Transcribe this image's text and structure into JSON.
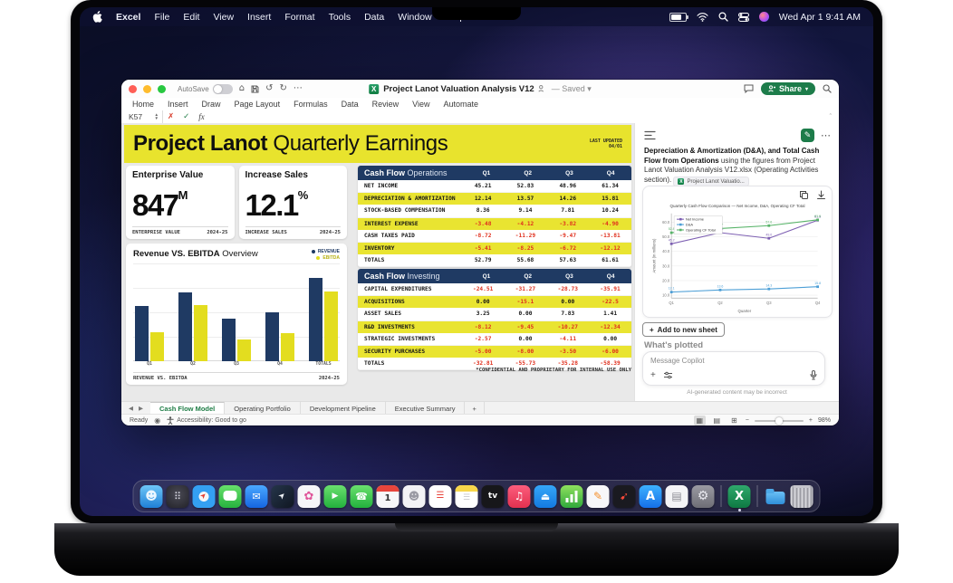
{
  "icons": {
    "home": "⌂",
    "undo": "↺",
    "redo": "↻",
    "more": "⋯",
    "chevron_down": "▾",
    "cancel": "✗",
    "confirm": "✓",
    "fx": "fx",
    "collapse": "ˆ",
    "tab_prev": "◀",
    "tab_next": "▶",
    "record": "◉",
    "grid_view": "▦",
    "page_view": "▤",
    "break_view": "⊞",
    "minus": "−",
    "plus": "+",
    "more_panel": "⋯",
    "pencil": "✎"
  },
  "desktop": {
    "menu_bar": {
      "items": [
        "Excel",
        "File",
        "Edit",
        "View",
        "Insert",
        "Format",
        "Tools",
        "Data",
        "Window",
        "Help"
      ],
      "clock": "Wed Apr 1  9:41 AM"
    },
    "dock": {
      "items": [
        {
          "k": "finder",
          "glyph": "☻",
          "bg": "linear-gradient(180deg,#6ec6f7,#1f80d7)",
          "fg": "#eaf6ff",
          "fs": "13"
        },
        {
          "k": "launchpad",
          "glyph": "⠿",
          "bg": "radial-gradient(circle at 50% 40%,#4a4a55,#232329)",
          "fg": "#d8d8e2",
          "fs": "11"
        },
        {
          "k": "safari",
          "glyph": "➤",
          "bg": "radial-gradient(circle,#f4f6f8 30%,#34a0f2 32%)",
          "fg": "#e53e30",
          "rot": "-45",
          "fs": "8"
        },
        {
          "k": "messages",
          "cls": "bubble",
          "glyph": "",
          "bg": "linear-gradient(180deg,#67e06b,#27b33f)"
        },
        {
          "k": "mail",
          "glyph": "✉",
          "bg": "linear-gradient(180deg,#4aa8ff,#1565e0)",
          "fg": "#fff",
          "fs": "11"
        },
        {
          "k": "maps",
          "glyph": "➤",
          "bg": "linear-gradient(135deg,#25354a,#101722)",
          "fg": "#f2f5f8",
          "rot": "-45",
          "fs": "9"
        },
        {
          "k": "photos",
          "glyph": "✿",
          "bg": "#f6f6f8",
          "fg": "#e0559a",
          "fs": "13"
        },
        {
          "k": "facetime",
          "glyph": "▶",
          "bg": "linear-gradient(180deg,#6ae06e,#23b13d)",
          "fg": "#fff",
          "fs": "9"
        },
        {
          "k": "phone",
          "glyph": "☎",
          "bg": "linear-gradient(180deg,#6ae06e,#23b13d)",
          "fg": "#fff",
          "fs": "11"
        },
        {
          "k": "calendar",
          "cls": "cal",
          "glyph": "1",
          "bg": "#f7f7f9",
          "fg": "#333",
          "fs": "10"
        },
        {
          "k": "contacts",
          "glyph": "☻",
          "bg": "#f2f2f5",
          "fg": "#9a9aa4",
          "fs": "12"
        },
        {
          "k": "reminders",
          "glyph": "☰",
          "bg": "#ffffff",
          "fg": "#e8453c",
          "fs": "10"
        },
        {
          "k": "notes",
          "cls": "notes",
          "glyph": "☰",
          "bg": "#fff",
          "fg": "#c9c9ce",
          "fs": "9"
        },
        {
          "k": "tv",
          "glyph": "tv",
          "bg": "#17171a",
          "fg": "#fff",
          "fs": "9",
          "bold": true
        },
        {
          "k": "music",
          "glyph": "♫",
          "bg": "linear-gradient(180deg,#fb5d7d,#e3314f)",
          "fg": "#fff",
          "fs": "12"
        },
        {
          "k": "keynote",
          "glyph": "⏏",
          "bg": "linear-gradient(180deg,#35a7f8,#1479e0)",
          "fg": "#fff",
          "fs": "11"
        },
        {
          "k": "numbers",
          "cls": "numbers",
          "glyph": "",
          "bg": "linear-gradient(180deg,#8ee05e,#30a83c)"
        },
        {
          "k": "pages",
          "glyph": "✎",
          "bg": "#f7f7f9",
          "fg": "#f5902c",
          "fs": "12"
        },
        {
          "k": "rocket",
          "glyph": "➹",
          "bg": "#1a1a20",
          "fg": "#ff4b3a",
          "fs": "12"
        },
        {
          "k": "app-store",
          "glyph": "A",
          "bg": "linear-gradient(180deg,#3db1ff,#156fe8)",
          "fg": "#fff",
          "fs": "13",
          "bold": true
        },
        {
          "k": "freeform",
          "glyph": "▤",
          "bg": "#f4f4f6",
          "fg": "#8a8a92",
          "fs": "12"
        },
        {
          "k": "settings",
          "glyph": "⚙",
          "bg": "linear-gradient(180deg,#9a9aa2,#6e6e76)",
          "fg": "#e8e8ee",
          "fs": "14"
        },
        {
          "type": "sep"
        },
        {
          "k": "excel",
          "glyph": "X",
          "bg": "linear-gradient(180deg,#2fa96c,#0f7a43)",
          "fg": "#fff",
          "fs": "13",
          "bold": true,
          "running": true
        },
        {
          "type": "sep"
        },
        {
          "k": "downloads",
          "cls": "folder",
          "glyph": "",
          "bg": ""
        },
        {
          "k": "trash",
          "cls": "trash",
          "glyph": "",
          "bg": ""
        }
      ]
    }
  },
  "window": {
    "titlebar": {
      "autosave_label": "AutoSave",
      "title": "Project Lanot Valuation Analysis V12",
      "saved_label": "— Saved",
      "share_label": "Share"
    },
    "ribbon_tabs": [
      "Home",
      "Insert",
      "Draw",
      "Page Layout",
      "Formulas",
      "Data",
      "Review",
      "View",
      "Automate"
    ],
    "formula_bar": {
      "cell_ref": "K57"
    },
    "sheet": {
      "header": {
        "title_bold": "Project Lanot",
        "title_light": " Quarterly Earnings",
        "updated_label": "LAST UPDATED",
        "updated_value": "04/01"
      },
      "kpis": [
        {
          "title": "Enterprise Value",
          "value": "847",
          "unit": "M",
          "footer_left": "ENTERPRISE VALUE",
          "footer_right": "2024-25"
        },
        {
          "title": "Increase Sales",
          "value": "12.1",
          "unit": "%",
          "footer_left": "INCREASE SALES",
          "footer_right": "2024-25"
        }
      ],
      "tables": [
        {
          "title_bold": "Cash Flow",
          "title_light": " Operations",
          "columns": [
            "Q1",
            "Q2",
            "Q3",
            "Q4"
          ],
          "rows": [
            {
              "label": "NET INCOME",
              "values": [
                "45.21",
                "52.83",
                "48.96",
                "61.34"
              ]
            },
            {
              "label": "DEPRECIATION & AMORTIZATION",
              "values": [
                "12.14",
                "13.57",
                "14.26",
                "15.81"
              ]
            },
            {
              "label": "STOCK-BASED COMPENSATION",
              "values": [
                "8.36",
                "9.14",
                "7.81",
                "10.24"
              ]
            },
            {
              "label": "INTEREST EXPENSE",
              "values": [
                "-3.48",
                "-4.12",
                "-3.82",
                "-4.90"
              ]
            },
            {
              "label": "CASH TAXES PAID",
              "values": [
                "-8.72",
                "-11.29",
                "-9.47",
                "-13.81"
              ]
            },
            {
              "label": "INVENTORY",
              "values": [
                "-5.41",
                "-8.25",
                "-6.72",
                "-12.12"
              ]
            },
            {
              "label": "TOTALS",
              "values": [
                "52.79",
                "55.68",
                "57.63",
                "61.61"
              ]
            }
          ]
        },
        {
          "title_bold": "Cash Flow",
          "title_light": " Investing",
          "columns": [
            "Q1",
            "Q2",
            "Q3",
            "Q4"
          ],
          "rows": [
            {
              "label": "CAPITAL EXPENDITURES",
              "values": [
                "-24.51",
                "-31.27",
                "-28.73",
                "-35.91"
              ]
            },
            {
              "label": "ACQUISITIONS",
              "values": [
                "0.00",
                "-15.1",
                "0.00",
                "-22.5"
              ]
            },
            {
              "label": "ASSET SALES",
              "values": [
                "3.25",
                "0.00",
                "7.83",
                "1.41"
              ]
            },
            {
              "label": "R&D INVESTMENTS",
              "values": [
                "-8.12",
                "-9.45",
                "-10.27",
                "-12.34"
              ]
            },
            {
              "label": "STRATEGIC INVESTMENTS",
              "values": [
                "-2.57",
                "0.00",
                "-4.11",
                "0.00"
              ]
            },
            {
              "label": "SECURITY PURCHASES",
              "values": [
                "-5.00",
                "-8.00",
                "-3.50",
                "-6.00"
              ]
            },
            {
              "label": "TOTALS",
              "values": [
                "-32.81",
                "-55.73",
                "-35.28",
                "-58.39"
              ]
            }
          ],
          "note": "*CONFIDENTIAL AND PROPRIETARY FOR INTERNAL USE ONLY"
        }
      ]
    },
    "copilot": {
      "message_segments": [
        {
          "t": "Depreciation & Amortization (D&A), and Total Cash Flow from Operations ",
          "b": true
        },
        {
          "t": "using the figures from Project Lanot Valuation Analysis V12.xlsx (Operating Activities section). ",
          "b": false
        }
      ],
      "attachment_chip": "Project Lanot Valuatio...",
      "add_button_label": "Add to new sheet",
      "whats_plotted": "What's plotted",
      "input_placeholder": "Message Copilot",
      "disclaimer": "AI-generated content may be incorrect"
    },
    "sheet_tabs": {
      "tabs": [
        {
          "label": "Cash Flow Model",
          "active": true
        },
        {
          "label": "Operating Portfolio",
          "active": false
        },
        {
          "label": "Development Pipeline",
          "active": false
        },
        {
          "label": "Executive Summary",
          "active": false
        }
      ],
      "add_label": "+"
    },
    "status_bar": {
      "ready": "Ready",
      "accessibility": "Accessibility: Good to go",
      "zoom": "98%"
    }
  },
  "chart_data": [
    {
      "type": "bar",
      "title_bold": "Revenue VS. EBITDA",
      "title_light": " Overview",
      "categories": [
        "Q1",
        "Q2",
        "Q3",
        "Q4",
        "TOTALS"
      ],
      "series": [
        {
          "name": "REVENUE",
          "color": "#1f3a63",
          "values": [
            59,
            73,
            45,
            52,
            88
          ]
        },
        {
          "name": "EBITDA",
          "color": "#e3dd1f",
          "values": [
            31,
            60,
            23,
            30,
            74
          ]
        }
      ],
      "ylim": [
        0,
        100
      ],
      "grid": true,
      "legend_position": "top-right",
      "footer_left": "REVENUE VS. EBITDA",
      "footer_right": "2024-25"
    },
    {
      "type": "line",
      "title": "Quarterly Cash Flow Comparison — Net Income, D&A, Operating CF Total",
      "x": [
        "Q1",
        "Q2",
        "Q3",
        "Q4"
      ],
      "xlabel": "Quarter",
      "ylabel": "Amount (in millions)",
      "yticks": [
        10,
        20,
        30,
        40,
        50,
        60
      ],
      "ylim": [
        8,
        66
      ],
      "series": [
        {
          "name": "Net Income",
          "color": "#7d5fb2",
          "values": [
            45.21,
            52.83,
            48.96,
            61.34
          ]
        },
        {
          "name": "D&A",
          "color": "#4d9fd6",
          "values": [
            12.14,
            13.57,
            14.26,
            15.81
          ]
        },
        {
          "name": "Operating CF Total",
          "color": "#57b368",
          "values": [
            52.79,
            55.68,
            57.63,
            61.61
          ]
        }
      ],
      "legend_position": "top-left",
      "grid": true
    }
  ]
}
